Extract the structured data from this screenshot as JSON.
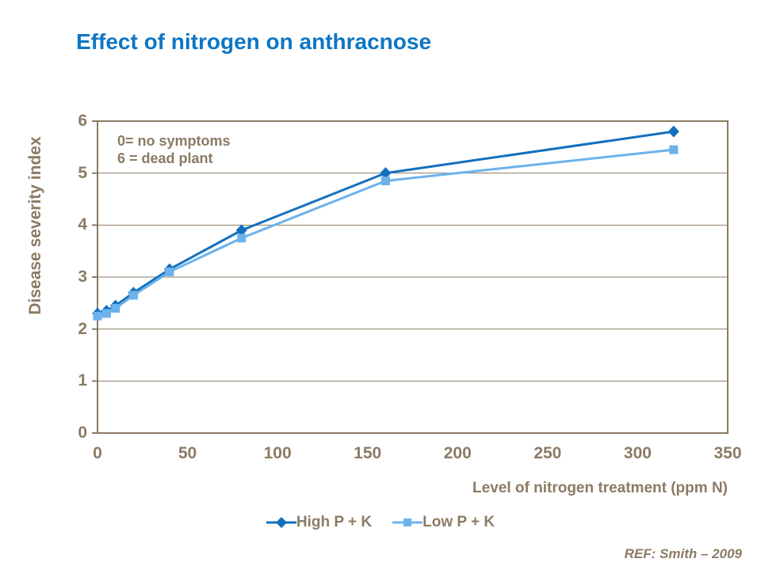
{
  "title_block": {
    "title": "Effect of nitrogen on anthracnose"
  },
  "ref_text": "REF: Smith – 2009",
  "colors": {
    "title_blue": "#0d76c4",
    "axis_brown": "#8b7b64",
    "grid_brown": "#8b7b64",
    "series_high_blue": "#1470bd",
    "series_low_blue": "#6cb2ec"
  },
  "chart_data": {
    "type": "line",
    "title": "Effect of nitrogen on anthracnose",
    "xlabel": "Level of nitrogen treatment (ppm N)",
    "ylabel": "Disease severity index",
    "x": [
      0,
      5,
      10,
      20,
      40,
      80,
      160,
      320
    ],
    "series": [
      {
        "name": "High P + K",
        "marker": "diamond",
        "color": "#1470bd",
        "values": [
          2.3,
          2.35,
          2.45,
          2.7,
          3.15,
          3.9,
          5.0,
          5.8
        ]
      },
      {
        "name": "Low P + K",
        "marker": "square",
        "color": "#6cb2ec",
        "values": [
          2.25,
          2.3,
          2.4,
          2.65,
          3.1,
          3.75,
          4.85,
          5.45
        ]
      }
    ],
    "xlim": [
      0,
      350
    ],
    "ylim": [
      0,
      6
    ],
    "x_ticks": [
      0,
      50,
      100,
      150,
      200,
      250,
      300,
      350
    ],
    "y_ticks": [
      0,
      1,
      2,
      3,
      4,
      5,
      6
    ],
    "grid": "horizontal",
    "legend_position": "bottom",
    "annotation": [
      "0= no symptoms",
      "6 = dead plant"
    ]
  }
}
